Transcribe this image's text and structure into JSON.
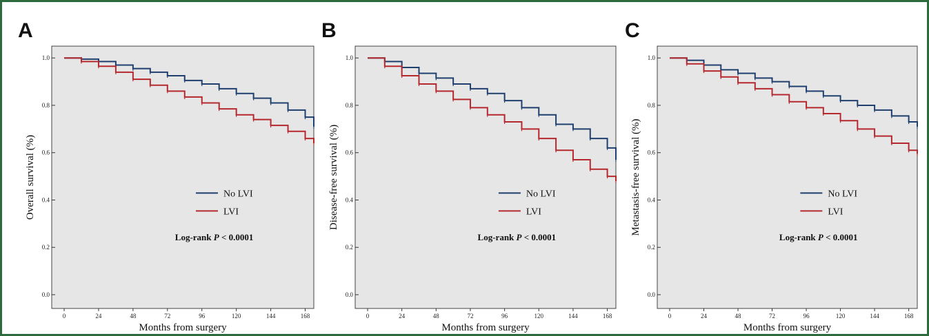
{
  "colors": {
    "no_lvi": "#1f3f6e",
    "lvi": "#b5282e",
    "plot_bg": "#e6e6e6"
  },
  "chart_data": [
    {
      "type": "line",
      "panel_label": "A",
      "ylabel": "Overall survival (%)",
      "xlabel": "Months from surgery",
      "xlim": [
        0,
        174
      ],
      "ylim": [
        0,
        1.05
      ],
      "x_ticks": [
        0,
        24,
        48,
        72,
        96,
        120,
        144,
        168
      ],
      "y_ticks": [
        "0.0",
        "0.2",
        "0.4",
        "0.6",
        "0.8",
        "1.0"
      ],
      "annotation_prefix": "Log-rank ",
      "annotation_p": "P",
      "annotation_suffix": " < 0.0001",
      "series": [
        {
          "name": "No LVI",
          "x": [
            0,
            12,
            24,
            36,
            48,
            60,
            72,
            84,
            96,
            108,
            120,
            132,
            144,
            156,
            168,
            174
          ],
          "y": [
            1.0,
            0.995,
            0.985,
            0.97,
            0.955,
            0.94,
            0.925,
            0.905,
            0.89,
            0.87,
            0.85,
            0.83,
            0.81,
            0.78,
            0.75,
            0.71
          ]
        },
        {
          "name": "LVI",
          "x": [
            0,
            12,
            24,
            36,
            48,
            60,
            72,
            84,
            96,
            108,
            120,
            132,
            144,
            156,
            168,
            174
          ],
          "y": [
            1.0,
            0.985,
            0.965,
            0.94,
            0.91,
            0.885,
            0.86,
            0.835,
            0.81,
            0.785,
            0.76,
            0.74,
            0.715,
            0.69,
            0.66,
            0.64
          ]
        }
      ]
    },
    {
      "type": "line",
      "panel_label": "B",
      "ylabel": "Disease-free survival (%)",
      "xlabel": "Months from surgery",
      "xlim": [
        0,
        174
      ],
      "ylim": [
        0,
        1.05
      ],
      "x_ticks": [
        0,
        24,
        48,
        72,
        96,
        120,
        144,
        168
      ],
      "y_ticks": [
        "0.0",
        "0.2",
        "0.4",
        "0.6",
        "0.8",
        "1.0"
      ],
      "annotation_prefix": "Log-rank ",
      "annotation_p": "P",
      "annotation_suffix": " < 0.0001",
      "series": [
        {
          "name": "No LVI",
          "x": [
            0,
            12,
            24,
            36,
            48,
            60,
            72,
            84,
            96,
            108,
            120,
            132,
            144,
            156,
            168,
            174
          ],
          "y": [
            1.0,
            0.985,
            0.96,
            0.935,
            0.915,
            0.89,
            0.87,
            0.85,
            0.82,
            0.79,
            0.76,
            0.72,
            0.7,
            0.66,
            0.62,
            0.57
          ]
        },
        {
          "name": "LVI",
          "x": [
            0,
            12,
            24,
            36,
            48,
            60,
            72,
            84,
            96,
            108,
            120,
            132,
            144,
            156,
            168,
            174
          ],
          "y": [
            1.0,
            0.965,
            0.925,
            0.89,
            0.86,
            0.825,
            0.79,
            0.76,
            0.73,
            0.7,
            0.66,
            0.61,
            0.57,
            0.53,
            0.5,
            0.48
          ]
        }
      ]
    },
    {
      "type": "line",
      "panel_label": "C",
      "ylabel": "Metastasis-free survival (%)",
      "xlabel": "Months from surgery",
      "xlim": [
        0,
        174
      ],
      "ylim": [
        0,
        1.05
      ],
      "x_ticks": [
        0,
        24,
        48,
        72,
        96,
        120,
        144,
        168
      ],
      "y_ticks": [
        "0.0",
        "0.2",
        "0.4",
        "0.6",
        "0.8",
        "1.0"
      ],
      "annotation_prefix": "Log-rank ",
      "annotation_p": "P",
      "annotation_suffix": " < 0.0001",
      "series": [
        {
          "name": "No LVI",
          "x": [
            0,
            12,
            24,
            36,
            48,
            60,
            72,
            84,
            96,
            108,
            120,
            132,
            144,
            156,
            168,
            174
          ],
          "y": [
            1.0,
            0.99,
            0.97,
            0.95,
            0.935,
            0.915,
            0.9,
            0.88,
            0.86,
            0.84,
            0.82,
            0.8,
            0.78,
            0.755,
            0.73,
            0.71
          ]
        },
        {
          "name": "LVI",
          "x": [
            0,
            12,
            24,
            36,
            48,
            60,
            72,
            84,
            96,
            108,
            120,
            132,
            144,
            156,
            168,
            174
          ],
          "y": [
            1.0,
            0.975,
            0.945,
            0.92,
            0.895,
            0.87,
            0.845,
            0.815,
            0.79,
            0.765,
            0.735,
            0.7,
            0.67,
            0.64,
            0.61,
            0.595
          ]
        }
      ]
    }
  ]
}
